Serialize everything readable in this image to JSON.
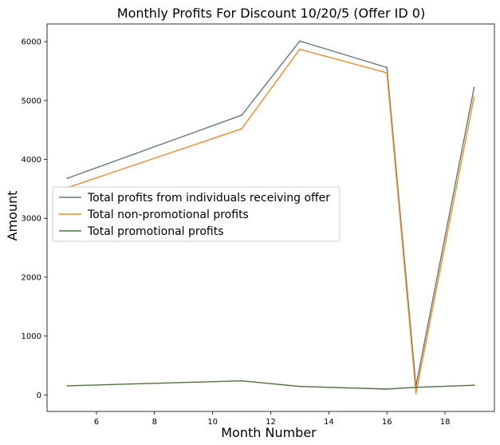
{
  "chart_data": {
    "type": "line",
    "title": "Monthly Profits For Discount 10/20/5 (Offer ID 0)",
    "xlabel": "Month Number",
    "ylabel": "Amount",
    "xlim": [
      4.3,
      19.7
    ],
    "ylim": [
      -280,
      6300
    ],
    "x_ticks": [
      6,
      8,
      10,
      12,
      14,
      16,
      18
    ],
    "y_ticks": [
      0,
      1000,
      2000,
      3000,
      4000,
      5000,
      6000
    ],
    "grid": false,
    "legend_position": "center-left",
    "x": [
      5,
      11,
      13,
      16,
      17,
      19
    ],
    "series": [
      {
        "name": "Total profits from individuals receiving offer",
        "color": "#5f7a7a",
        "values": [
          3680,
          4750,
          6010,
          5560,
          150,
          5220
        ]
      },
      {
        "name": "Total non-promotional profits",
        "color": "#f08a24",
        "values": [
          3520,
          4520,
          5870,
          5470,
          30,
          5060
        ]
      },
      {
        "name": "Total promotional profits",
        "color": "#4e7040",
        "values": [
          155,
          240,
          145,
          100,
          130,
          165
        ]
      }
    ]
  }
}
